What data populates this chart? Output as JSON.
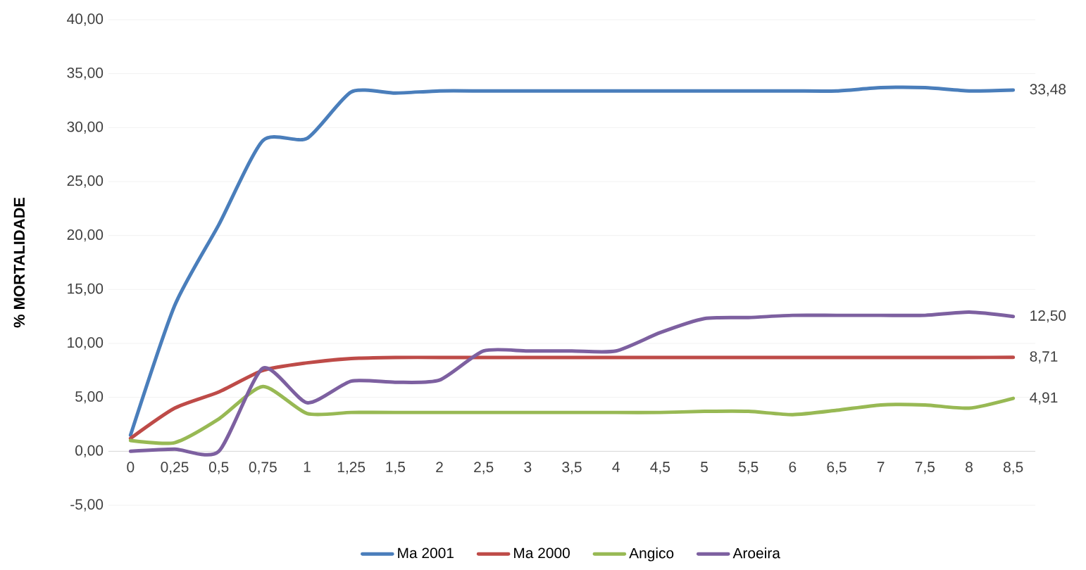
{
  "chart_data": {
    "type": "line",
    "ylabel": "% MORTALIDADE",
    "categories": [
      "0",
      "0,25",
      "0,5",
      "0,75",
      "1",
      "1,25",
      "1,5",
      "2",
      "2,5",
      "3",
      "3,5",
      "4",
      "4,5",
      "5",
      "5,5",
      "6",
      "6,5",
      "7",
      "7,5",
      "8",
      "8,5"
    ],
    "series": [
      {
        "name": "Ma 2001",
        "color": "#4a7ebb",
        "values": [
          1.5,
          13.5,
          21,
          28.8,
          29,
          33.3,
          33.2,
          33.4,
          33.4,
          33.4,
          33.4,
          33.4,
          33.4,
          33.4,
          33.4,
          33.4,
          33.4,
          33.7,
          33.7,
          33.4,
          33.48
        ],
        "value_labels": [
          null,
          null,
          null,
          null,
          null,
          null,
          null,
          null,
          null,
          null,
          null,
          null,
          null,
          null,
          null,
          null,
          null,
          null,
          null,
          null,
          "33,48"
        ]
      },
      {
        "name": "Ma 2000",
        "color": "#be4b48",
        "values": [
          1.2,
          4.0,
          5.5,
          7.5,
          8.2,
          8.6,
          8.7,
          8.7,
          8.7,
          8.7,
          8.7,
          8.7,
          8.7,
          8.7,
          8.7,
          8.7,
          8.7,
          8.7,
          8.7,
          8.7,
          8.71
        ],
        "value_labels": [
          null,
          null,
          null,
          null,
          null,
          null,
          null,
          null,
          null,
          null,
          null,
          null,
          null,
          null,
          null,
          null,
          null,
          null,
          null,
          null,
          "8,71"
        ]
      },
      {
        "name": "Angico",
        "color": "#98b954",
        "values": [
          1.0,
          0.8,
          3.0,
          6.0,
          3.5,
          3.6,
          3.6,
          3.6,
          3.6,
          3.6,
          3.6,
          3.6,
          3.6,
          3.7,
          3.7,
          3.4,
          3.8,
          4.3,
          4.3,
          4.0,
          4.91
        ],
        "value_labels": [
          null,
          null,
          null,
          null,
          null,
          null,
          null,
          null,
          null,
          null,
          null,
          null,
          null,
          null,
          null,
          null,
          null,
          null,
          null,
          null,
          "4,91"
        ]
      },
      {
        "name": "Aroeira",
        "color": "#7d60a0",
        "values": [
          0,
          0.2,
          0,
          7.7,
          4.5,
          6.5,
          6.4,
          6.6,
          9.3,
          9.3,
          9.3,
          9.3,
          11.0,
          12.3,
          12.4,
          12.6,
          12.6,
          12.6,
          12.6,
          12.9,
          12.5
        ],
        "value_labels": [
          null,
          null,
          null,
          null,
          null,
          null,
          null,
          null,
          null,
          null,
          null,
          null,
          null,
          null,
          null,
          null,
          null,
          null,
          null,
          null,
          "12,50"
        ]
      }
    ],
    "ylim": [
      -5,
      40
    ],
    "yticks": [
      {
        "value": -5,
        "label": "-5,00"
      },
      {
        "value": 0,
        "label": "0,00"
      },
      {
        "value": 5,
        "label": "5,00"
      },
      {
        "value": 10,
        "label": "10,00"
      },
      {
        "value": 15,
        "label": "15,00"
      },
      {
        "value": 20,
        "label": "20,00"
      },
      {
        "value": 25,
        "label": "25,00"
      },
      {
        "value": 30,
        "label": "30,00"
      },
      {
        "value": 35,
        "label": "35,00"
      },
      {
        "value": 40,
        "label": "40,00"
      }
    ],
    "grid": "y",
    "legend": "bottom",
    "marker": "none",
    "line_style": "solid"
  }
}
